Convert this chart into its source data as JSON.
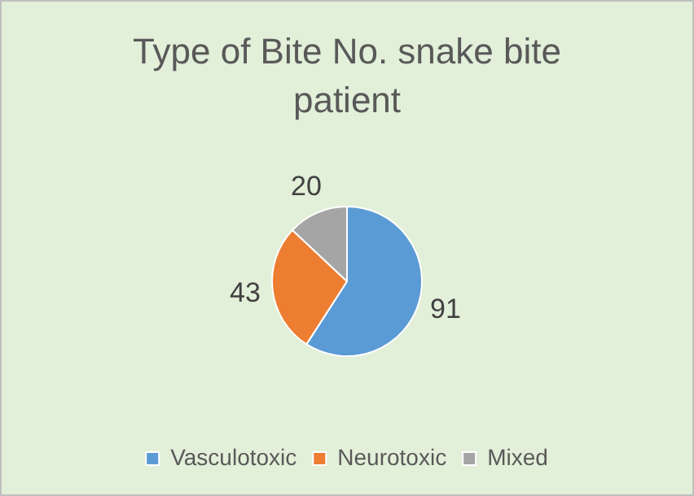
{
  "chart_data": {
    "type": "pie",
    "title": "Type of Bite No. snake bite patient",
    "categories": [
      "Vasculotoxic",
      "Neurotoxic",
      "Mixed"
    ],
    "values": [
      91,
      43,
      20
    ],
    "colors": [
      "#5b9bd5",
      "#ed7d31",
      "#a5a5a5"
    ],
    "data_labels": true,
    "legend": "bottom"
  }
}
